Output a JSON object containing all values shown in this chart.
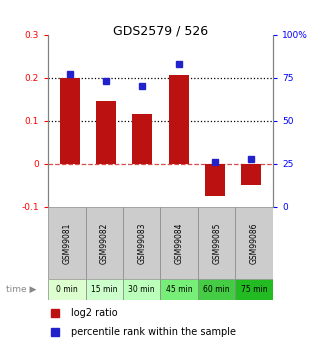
{
  "title": "GDS2579 / 526",
  "samples": [
    "GSM99081",
    "GSM99082",
    "GSM99083",
    "GSM99084",
    "GSM99085",
    "GSM99086"
  ],
  "time_labels": [
    "0 min",
    "15 min",
    "30 min",
    "45 min",
    "60 min",
    "75 min"
  ],
  "time_colors": [
    "#ddffd0",
    "#ccffcc",
    "#bbffbb",
    "#77ee77",
    "#44cc44",
    "#22bb22"
  ],
  "log2_ratio": [
    0.2,
    0.145,
    0.115,
    0.205,
    -0.075,
    -0.05
  ],
  "percentile_rank_pct": [
    77,
    73,
    70,
    83,
    26,
    28
  ],
  "bar_color": "#bb1111",
  "dot_color": "#2222cc",
  "ylim_left": [
    -0.1,
    0.3
  ],
  "ylim_right": [
    0,
    100
  ],
  "yticks_left": [
    -0.1,
    0.0,
    0.1,
    0.2,
    0.3
  ],
  "yticks_right": [
    0,
    25,
    50,
    75,
    100
  ],
  "hline_dotted": [
    0.1,
    0.2
  ],
  "hline_zero_color": "#cc2222",
  "bg_color": "#ffffff",
  "sample_label_bg": "#cccccc",
  "bar_width": 0.55
}
